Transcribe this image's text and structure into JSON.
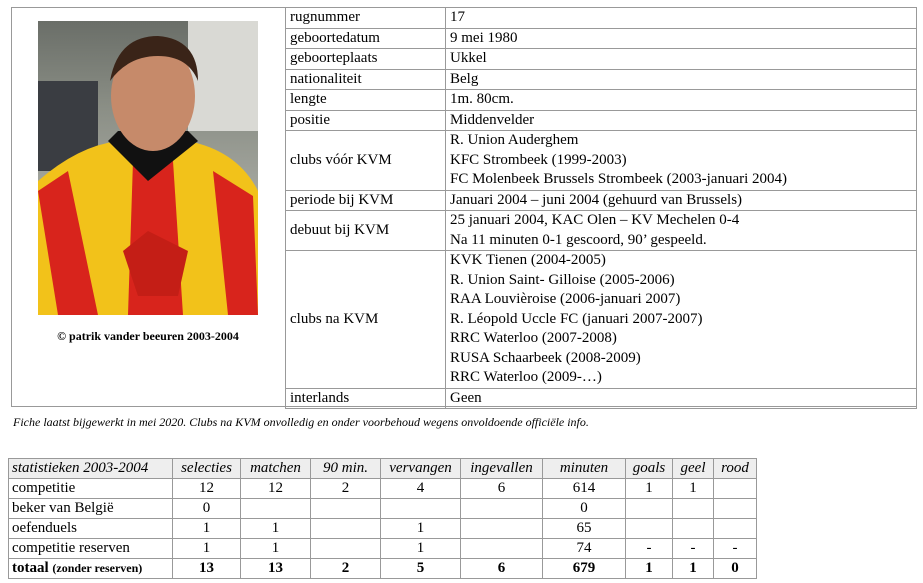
{
  "photo": {
    "caption": "© patrik vander beeuren  2003-2004",
    "colors": {
      "shirt_red": "#d8241c",
      "shirt_yellow": "#f2c21a"
    }
  },
  "info": [
    {
      "label": "rugnummer",
      "values": [
        "17"
      ]
    },
    {
      "label": "geboortedatum",
      "values": [
        "9 mei 1980"
      ]
    },
    {
      "label": "geboorteplaats",
      "values": [
        "Ukkel"
      ]
    },
    {
      "label": "nationaliteit",
      "values": [
        "Belg"
      ]
    },
    {
      "label": "lengte",
      "values": [
        "1m. 80cm."
      ]
    },
    {
      "label": "positie",
      "values": [
        "Middenvelder"
      ]
    },
    {
      "label": "clubs vóór KVM",
      "values": [
        "R. Union Auderghem",
        "KFC Strombeek  (1999-2003)",
        "FC Molenbeek Brussels Strombeek  (2003-januari 2004)"
      ]
    },
    {
      "label": "periode bij KVM",
      "values": [
        "Januari 2004 – juni 2004  (gehuurd van Brussels)"
      ]
    },
    {
      "label": "debuut bij KVM",
      "values": [
        "25 januari 2004, KAC Olen – KV Mechelen 0-4",
        "Na 11 minuten 0-1 gescoord, 90’ gespeeld."
      ]
    },
    {
      "label": "clubs na KVM",
      "values": [
        "KVK Tienen  (2004-2005)",
        "R. Union Saint- Gilloise  (2005-2006)",
        "RAA Louvièroise  (2006-januari 2007)",
        "R. Léopold Uccle FC  (januari 2007-2007)",
        "RRC Waterloo  (2007-2008)",
        "RUSA Schaarbeek  (2008-2009)",
        "RRC Waterloo  (2009-…)"
      ]
    },
    {
      "label": "interlands",
      "values": [
        "Geen"
      ]
    }
  ],
  "note": "Fiche laatst bijgewerkt in mei 2020.  Clubs na KVM onvolledig en onder voorbehoud wegens onvoldoende officiële info.",
  "stats": {
    "headers": [
      "statistieken 2003-2004",
      "selecties",
      "matchen",
      "90 min.",
      "vervangen",
      "ingevallen",
      "minuten",
      "goals",
      "geel",
      "rood"
    ],
    "rows": [
      [
        "competitie",
        "12",
        "12",
        "2",
        "4",
        "6",
        "614",
        "1",
        "1",
        ""
      ],
      [
        "beker van België",
        "0",
        "",
        "",
        "",
        "",
        "0",
        "",
        "",
        ""
      ],
      [
        "oefenduels",
        "1",
        "1",
        "",
        "1",
        "",
        "65",
        "",
        "",
        ""
      ],
      [
        "competitie reserven",
        "1",
        "1",
        "",
        "1",
        "",
        "74",
        "-",
        "-",
        "-"
      ]
    ],
    "total": {
      "label": "totaal",
      "label_note": "(zonder reserven)",
      "values": [
        "13",
        "13",
        "2",
        "5",
        "6",
        "679",
        "1",
        "1",
        "0"
      ]
    }
  }
}
